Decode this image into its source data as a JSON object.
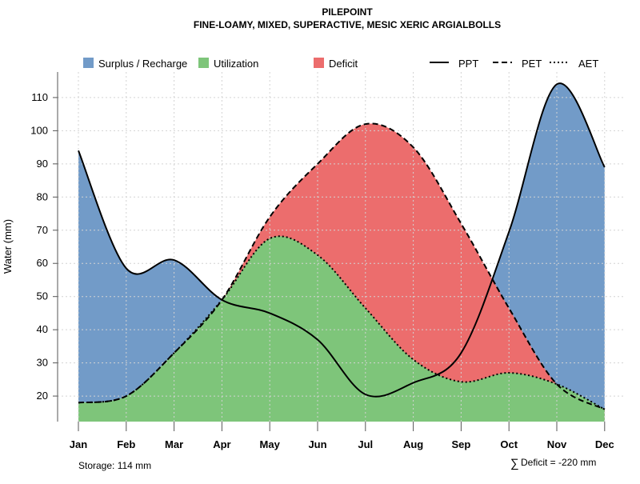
{
  "chart_data": {
    "type": "area",
    "title": "PILEPOINT",
    "subtitle": "FINE-LOAMY, MIXED, SUPERACTIVE, MESIC XERIC ARGIALBOLLS",
    "xlabel": "",
    "ylabel": "Water (mm)",
    "ylim": [
      12.3,
      117.7
    ],
    "yticks": [
      20,
      30,
      40,
      50,
      60,
      70,
      80,
      90,
      100,
      110
    ],
    "categories": [
      "Jan",
      "Feb",
      "Mar",
      "Apr",
      "May",
      "Jun",
      "Jul",
      "Aug",
      "Sep",
      "Oct",
      "Nov",
      "Dec"
    ],
    "series": [
      {
        "name": "PPT",
        "style": "solid",
        "values": [
          94,
          58.5,
          61,
          49,
          45,
          37,
          20.5,
          24,
          33,
          69.5,
          114,
          89
        ]
      },
      {
        "name": "PET",
        "style": "dashed",
        "values": [
          18,
          20,
          33,
          49,
          74,
          90,
          102,
          95,
          72,
          46.5,
          23.6,
          16
        ]
      },
      {
        "name": "AET",
        "style": "dotted",
        "values": [
          18,
          20,
          33,
          49,
          67.5,
          62.5,
          46.5,
          31,
          24.3,
          27,
          23.6,
          16
        ]
      }
    ],
    "fills": [
      {
        "name": "Surplus / Recharge",
        "color": "#729bc8"
      },
      {
        "name": "Utilization",
        "color": "#7ec57a"
      },
      {
        "name": "Deficit",
        "color": "#ec6d6d"
      }
    ],
    "legend": "top",
    "grid": true,
    "annotations": {
      "storage": "Storage: 114 mm",
      "deficit": "Deficit = -220 mm",
      "sum_symbol": "∑"
    }
  }
}
